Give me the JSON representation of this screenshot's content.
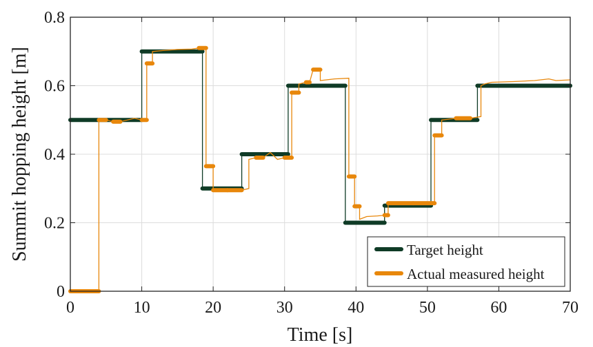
{
  "chart_data": {
    "type": "line",
    "title": "",
    "xlabel": "Time [s]",
    "ylabel": "Summit hopping height [m]",
    "xlim": [
      0,
      70
    ],
    "ylim": [
      0,
      0.8
    ],
    "xticks": [
      0,
      10,
      20,
      30,
      40,
      50,
      60,
      70
    ],
    "yticks": [
      0,
      0.2,
      0.4,
      0.6,
      0.8
    ],
    "xtick_labels": [
      "0",
      "10",
      "20",
      "30",
      "40",
      "50",
      "60",
      "70"
    ],
    "ytick_labels": [
      "0",
      "0.2",
      "0.4",
      "0.6",
      "0.8"
    ],
    "grid": true,
    "legend_position": "bottom-right",
    "series": [
      {
        "name": "Target height",
        "color": "#0f3b26",
        "style": "step",
        "points": [
          [
            0,
            0.5
          ],
          [
            10,
            0.5
          ],
          [
            10,
            0.7
          ],
          [
            18.5,
            0.7
          ],
          [
            18.5,
            0.3
          ],
          [
            24,
            0.3
          ],
          [
            24,
            0.4
          ],
          [
            30.5,
            0.4
          ],
          [
            30.5,
            0.6
          ],
          [
            38.5,
            0.6
          ],
          [
            38.5,
            0.2
          ],
          [
            44,
            0.2
          ],
          [
            44,
            0.25
          ],
          [
            50.5,
            0.25
          ],
          [
            50.5,
            0.5
          ],
          [
            57,
            0.5
          ],
          [
            57,
            0.6
          ],
          [
            70,
            0.6
          ]
        ]
      },
      {
        "name": "Actual measured height",
        "color": "#e8870b",
        "style": "step",
        "points": [
          [
            0,
            0
          ],
          [
            4,
            0
          ],
          [
            4,
            0.5
          ],
          [
            5,
            0.5
          ],
          [
            6,
            0.495
          ],
          [
            7,
            0.495
          ],
          [
            8,
            0.5
          ],
          [
            9,
            0.505
          ],
          [
            10,
            0.5
          ],
          [
            10.7,
            0.5
          ],
          [
            10.7,
            0.665
          ],
          [
            11.5,
            0.665
          ],
          [
            11.5,
            0.7
          ],
          [
            13,
            0.703
          ],
          [
            15,
            0.706
          ],
          [
            17,
            0.707
          ],
          [
            18,
            0.71
          ],
          [
            19,
            0.71
          ],
          [
            19,
            0.365
          ],
          [
            20,
            0.365
          ],
          [
            20,
            0.295
          ],
          [
            22,
            0.295
          ],
          [
            24,
            0.295
          ],
          [
            25,
            0.3
          ],
          [
            25,
            0.385
          ],
          [
            26,
            0.39
          ],
          [
            27,
            0.39
          ],
          [
            28,
            0.405
          ],
          [
            29,
            0.385
          ],
          [
            30,
            0.39
          ],
          [
            31,
            0.39
          ],
          [
            31,
            0.58
          ],
          [
            32,
            0.58
          ],
          [
            32,
            0.605
          ],
          [
            33,
            0.61
          ],
          [
            33.5,
            0.61
          ],
          [
            34,
            0.647
          ],
          [
            35,
            0.647
          ],
          [
            35,
            0.615
          ],
          [
            37,
            0.62
          ],
          [
            39,
            0.622
          ],
          [
            39,
            0.335
          ],
          [
            39.8,
            0.335
          ],
          [
            39.8,
            0.248
          ],
          [
            40.5,
            0.248
          ],
          [
            40.5,
            0.21
          ],
          [
            41.5,
            0.218
          ],
          [
            43,
            0.22
          ],
          [
            44,
            0.222
          ],
          [
            44.5,
            0.222
          ],
          [
            44.5,
            0.257
          ],
          [
            48,
            0.257
          ],
          [
            51,
            0.257
          ],
          [
            51,
            0.455
          ],
          [
            52,
            0.455
          ],
          [
            52,
            0.5
          ],
          [
            54,
            0.505
          ],
          [
            56,
            0.505
          ],
          [
            57.5,
            0.51
          ],
          [
            57.5,
            0.6
          ],
          [
            58,
            0.605
          ],
          [
            59,
            0.61
          ],
          [
            62,
            0.612
          ],
          [
            65,
            0.615
          ],
          [
            67,
            0.62
          ],
          [
            68,
            0.615
          ],
          [
            70,
            0.617
          ]
        ]
      }
    ]
  }
}
